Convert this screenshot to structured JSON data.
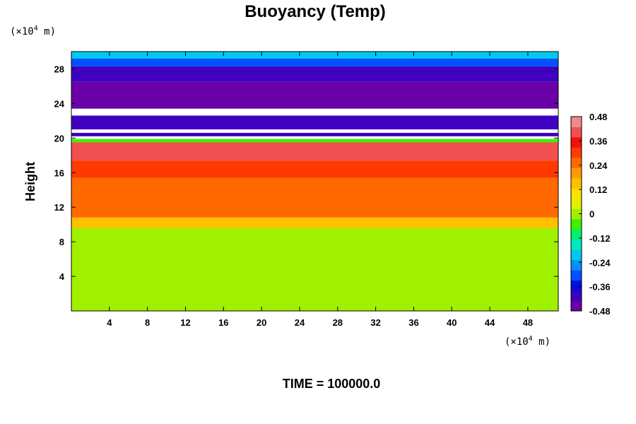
{
  "chart_data": {
    "type": "heatmap",
    "title": "Buoyancy (Temp)",
    "ylabel": "Height",
    "x_unit": "(×10",
    "x_unit_exp": "4",
    "x_unit_suffix": " m)",
    "y_unit": "(×10",
    "y_unit_exp": "4",
    "y_unit_suffix": " m)",
    "xlim": [
      0,
      51.2
    ],
    "ylim": [
      0,
      30
    ],
    "x_ticks": [
      4,
      8,
      12,
      16,
      20,
      24,
      28,
      32,
      36,
      40,
      44,
      48
    ],
    "x_tick_labels": [
      "4",
      "8",
      "12",
      "16",
      "20",
      "24",
      "28",
      "32",
      "36",
      "40",
      "44",
      "48"
    ],
    "y_ticks": [
      4,
      8,
      12,
      16,
      20,
      24,
      28
    ],
    "y_tick_labels": [
      "4",
      "8",
      "12",
      "16",
      "20",
      "24",
      "28"
    ],
    "colorbar": {
      "min": -0.48,
      "max": 0.48,
      "ticks": [
        0.48,
        0.36,
        0.24,
        0.12,
        0,
        -0.12,
        -0.24,
        -0.36,
        -0.48
      ],
      "tick_labels": [
        "0.48",
        "0.36",
        "0.24",
        "0.12",
        "0",
        "-0.12",
        "-0.24",
        "-0.36",
        "-0.48"
      ],
      "colors": [
        "#6a00a8",
        "#4000c0",
        "#0010e0",
        "#0050ff",
        "#0090ff",
        "#00c8f0",
        "#00e8c0",
        "#00f070",
        "#40f000",
        "#a0f000",
        "#e0f000",
        "#ffe000",
        "#ffc000",
        "#ff9a00",
        "#ff6a00",
        "#ff3a00",
        "#f01010",
        "#f05050",
        "#f08a8a"
      ]
    },
    "bands": [
      {
        "y0": 0,
        "y1": 9.6,
        "value": 0.0
      },
      {
        "y0": 9.6,
        "y1": 10.8,
        "value": 0.14
      },
      {
        "y0": 10.8,
        "y1": 15.4,
        "value": 0.24
      },
      {
        "y0": 15.4,
        "y1": 17.4,
        "value": 0.3
      },
      {
        "y0": 17.4,
        "y1": 19.5,
        "value": 0.4
      },
      {
        "y0": 19.5,
        "y1": 19.9,
        "value": -0.06
      },
      {
        "y0": 19.9,
        "y1": 20.2,
        "value": 0.5
      },
      {
        "y0": 20.2,
        "y1": 20.6,
        "value": -0.4
      },
      {
        "y0": 20.6,
        "y1": 21.0,
        "value": 0.5
      },
      {
        "y0": 21.0,
        "y1": 22.6,
        "value": -0.38
      },
      {
        "y0": 22.6,
        "y1": 23.4,
        "value": 0.5
      },
      {
        "y0": 23.4,
        "y1": 26.5,
        "value": -0.46
      },
      {
        "y0": 26.5,
        "y1": 28.3,
        "value": -0.4
      },
      {
        "y0": 28.3,
        "y1": 29.2,
        "value": -0.32
      },
      {
        "y0": 29.2,
        "y1": 30.0,
        "value": -0.2
      }
    ],
    "white_region_label": "above color range",
    "time_label": "TIME = 100000.0"
  }
}
